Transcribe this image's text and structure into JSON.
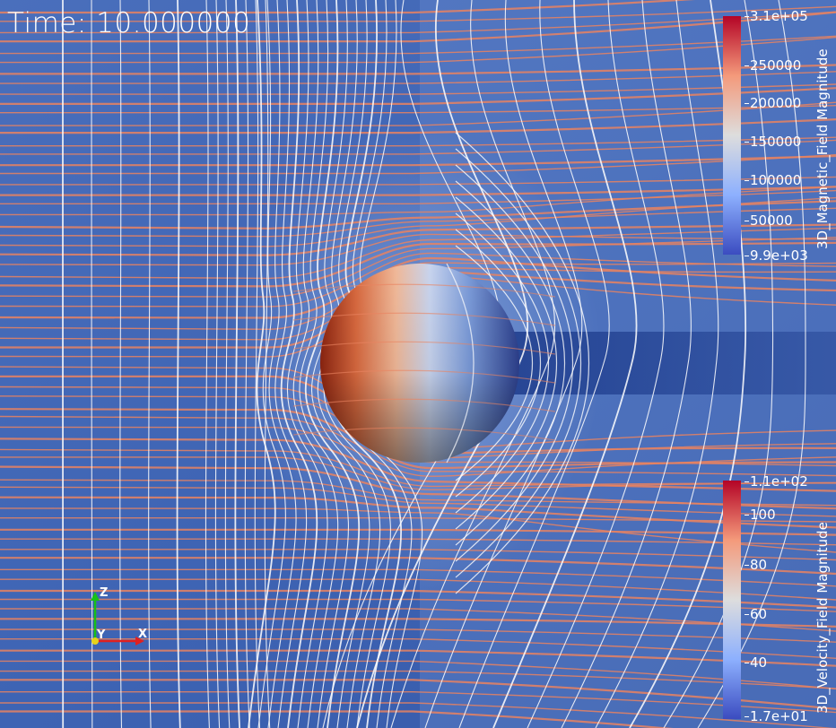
{
  "time_label": "Time: 10.000000",
  "colors": {
    "background": "#3e64b4",
    "stream_warm": "#e98360",
    "stream_field": "#ffffff",
    "cmap_low": "#3b4cc0",
    "cmap_mid": "#dddddd",
    "cmap_high": "#b40426"
  },
  "scalar_bars": [
    {
      "title": "3D_Magnetic_Field Magnitude",
      "ticks": [
        "3.1e+05",
        "250000",
        "200000",
        "150000",
        "100000",
        "50000",
        "9.9e+03"
      ]
    },
    {
      "title": "3D_Velocity_Field Magnitude",
      "ticks": [
        "1.1e+02",
        "100",
        "80",
        "60",
        "40",
        "1.7e+01"
      ]
    }
  ],
  "orientation_axes": {
    "z_label": "Z",
    "y_label": "Y",
    "x_label": "X",
    "colors": {
      "x": "#e02020",
      "y": "#e6d21a",
      "z": "#18c018"
    }
  }
}
